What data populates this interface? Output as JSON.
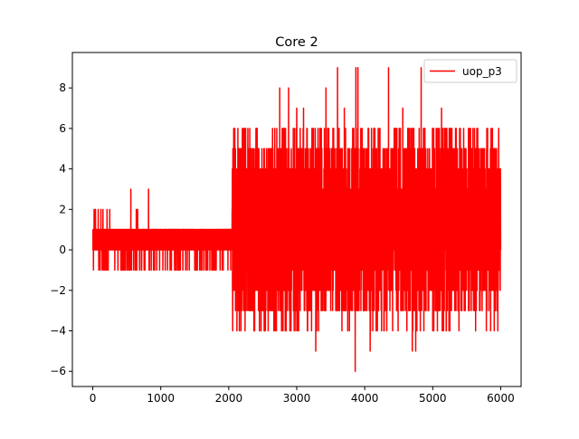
{
  "chart_data": {
    "type": "line",
    "title": "Core 2",
    "xlabel": "",
    "ylabel": "",
    "xlim": [
      -300,
      6300
    ],
    "ylim": [
      -6.75,
      9.75
    ],
    "xticks": [
      0,
      1000,
      2000,
      3000,
      4000,
      5000,
      6000
    ],
    "yticks": [
      -6,
      -4,
      -2,
      0,
      2,
      4,
      6,
      8
    ],
    "grid": false,
    "legend": "top-right",
    "colors": {
      "series": "#ff0000",
      "axes": "#000000",
      "background": "#ffffff"
    },
    "series": [
      {
        "name": "uop_p3",
        "x_start": 0,
        "x_end": 6000,
        "n_points": 6000,
        "segments": [
          {
            "x_range": [
              0,
              2050
            ],
            "base_range": [
              0,
              1
            ],
            "low": -1,
            "high": 1,
            "spikes": [
              {
                "x": 20,
                "y": 2
              },
              {
                "x": 40,
                "y": 2
              },
              {
                "x": 80,
                "y": 2
              },
              {
                "x": 120,
                "y": 2
              },
              {
                "x": 150,
                "y": 2
              },
              {
                "x": 210,
                "y": 2
              },
              {
                "x": 250,
                "y": 2
              },
              {
                "x": 560,
                "y": 3
              },
              {
                "x": 640,
                "y": 2
              },
              {
                "x": 820,
                "y": 3
              },
              {
                "x": 660,
                "y": 2
              },
              {
                "x": 2050,
                "y": 2
              }
            ],
            "dips": [
              {
                "x": 10,
                "y": -1
              },
              {
                "x": 180,
                "y": -1
              },
              {
                "x": 370,
                "y": -1
              },
              {
                "x": 430,
                "y": -1
              },
              {
                "x": 500,
                "y": -1
              },
              {
                "x": 1100,
                "y": -1
              },
              {
                "x": 1500,
                "y": -1
              },
              {
                "x": 1800,
                "y": -1
              },
              {
                "x": 2080,
                "y": -1
              }
            ]
          },
          {
            "x_range": [
              2050,
              6000
            ],
            "low": -4,
            "high": 6,
            "spikes": [
              {
                "x": 2150,
                "y": 5
              },
              {
                "x": 2200,
                "y": 6
              },
              {
                "x": 2400,
                "y": 6
              },
              {
                "x": 2750,
                "y": 8
              },
              {
                "x": 2880,
                "y": 8
              },
              {
                "x": 3000,
                "y": 7
              },
              {
                "x": 3100,
                "y": 7
              },
              {
                "x": 3280,
                "y": 9
              },
              {
                "x": 3430,
                "y": 8
              },
              {
                "x": 3600,
                "y": 9
              },
              {
                "x": 3700,
                "y": 7
              },
              {
                "x": 3870,
                "y": 9
              },
              {
                "x": 3900,
                "y": 9
              },
              {
                "x": 4050,
                "y": 6
              },
              {
                "x": 4350,
                "y": 9
              },
              {
                "x": 4560,
                "y": 7
              },
              {
                "x": 4750,
                "y": 8
              },
              {
                "x": 4830,
                "y": 9
              },
              {
                "x": 5000,
                "y": 7
              },
              {
                "x": 5130,
                "y": 7
              },
              {
                "x": 5250,
                "y": 6
              },
              {
                "x": 5550,
                "y": 6
              },
              {
                "x": 5650,
                "y": 6
              },
              {
                "x": 5970,
                "y": 6
              }
            ],
            "dips": [
              {
                "x": 2180,
                "y": -4
              },
              {
                "x": 2240,
                "y": -4
              },
              {
                "x": 2600,
                "y": -3
              },
              {
                "x": 2900,
                "y": -4
              },
              {
                "x": 3280,
                "y": -5
              },
              {
                "x": 3500,
                "y": -3
              },
              {
                "x": 3750,
                "y": -4
              },
              {
                "x": 3860,
                "y": -6
              },
              {
                "x": 4080,
                "y": -5
              },
              {
                "x": 4300,
                "y": -3
              },
              {
                "x": 4700,
                "y": -5
              },
              {
                "x": 4750,
                "y": -5
              },
              {
                "x": 4870,
                "y": -4
              },
              {
                "x": 5000,
                "y": -4
              },
              {
                "x": 5200,
                "y": -4
              },
              {
                "x": 5430,
                "y": -3
              },
              {
                "x": 5600,
                "y": -3
              }
            ]
          }
        ]
      }
    ]
  }
}
